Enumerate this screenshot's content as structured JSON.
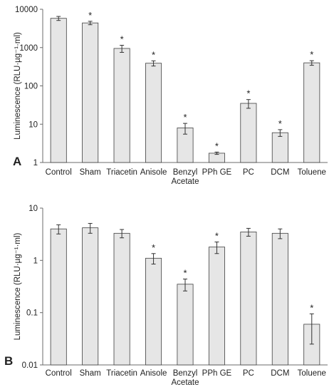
{
  "figure": {
    "bar_color": "#e6e6e6",
    "bar_edge_color": "#3f3f3f",
    "axis_color": "#6b6b6b"
  },
  "chart_data": [
    {
      "type": "bar",
      "panel_label": "A",
      "ylabel": "Luminescence (RLU·µg⁻¹·ml)",
      "yscale": "log",
      "ylim": [
        1,
        10000
      ],
      "yticks": [
        "1",
        "10",
        "100",
        "1000",
        "10000"
      ],
      "grid": false,
      "categories": [
        "Control",
        "Sham",
        "Triacetin",
        "Anisole",
        "Benzyl\nAcetate",
        "PPh GE",
        "PC",
        "DCM",
        "Toluene"
      ],
      "values": [
        5800,
        4400,
        950,
        390,
        8,
        1.75,
        35,
        6,
        400
      ],
      "errors": [
        700,
        450,
        200,
        60,
        2.5,
        0.12,
        9,
        1.2,
        55
      ],
      "significant": [
        false,
        true,
        true,
        true,
        true,
        true,
        true,
        true,
        true
      ],
      "significance_marker": "*"
    },
    {
      "type": "bar",
      "panel_label": "B",
      "ylabel": "Luminescence (RLU·µg⁻¹·ml)",
      "yscale": "log",
      "ylim": [
        0.01,
        10
      ],
      "yticks": [
        "0.01",
        "0.1",
        "1",
        "10"
      ],
      "grid": false,
      "categories": [
        "Control",
        "Sham",
        "Triacetin",
        "Anisole",
        "Benzyl\nAcetate",
        "PPh GE",
        "PC",
        "DCM",
        "Toluene"
      ],
      "values": [
        4.0,
        4.2,
        3.3,
        1.1,
        0.35,
        1.8,
        3.5,
        3.3,
        0.06
      ],
      "errors": [
        0.8,
        0.9,
        0.6,
        0.25,
        0.09,
        0.45,
        0.6,
        0.7,
        0.035
      ],
      "significant": [
        false,
        false,
        false,
        true,
        true,
        true,
        false,
        false,
        true
      ],
      "significance_marker": "*"
    }
  ]
}
